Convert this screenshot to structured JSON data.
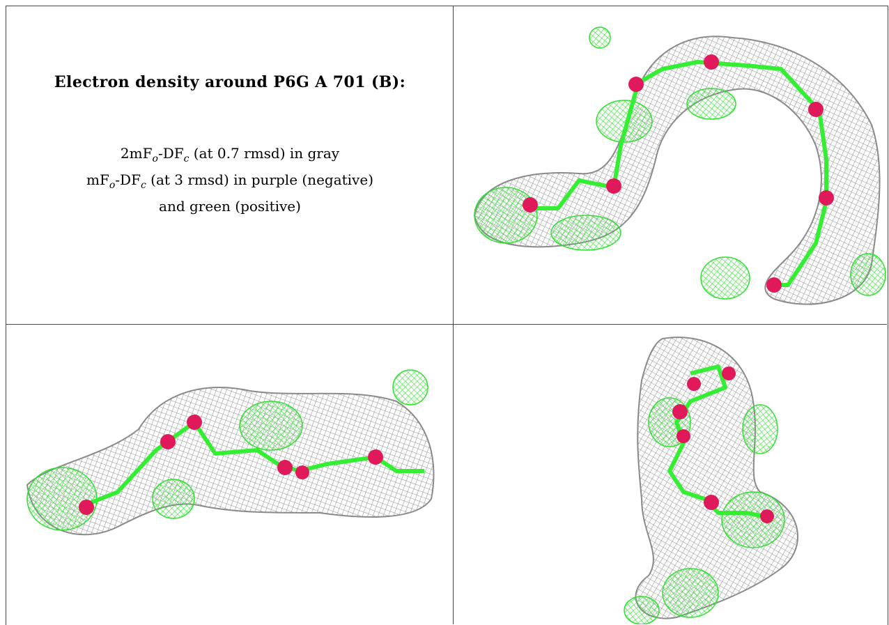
{
  "caption": {
    "title": "Electron density around P6G A 701 (B):",
    "line1": {
      "a": "2mF",
      "sub_o": "o",
      "b": "-DF",
      "sub_c": "c",
      "rest": " (at 0.7 rmsd) in gray"
    },
    "line2": {
      "a": "mF",
      "sub_o": "o",
      "b": "-DF",
      "sub_c": "c",
      "rest": " (at 3 rmsd) in purple (negative)"
    },
    "line3": "and green (positive)"
  },
  "colors": {
    "mesh_gray": "#9a9a9a",
    "mesh_green": "#3ee83e",
    "atom_red": "#e0195a",
    "bond_green": "#33ee33"
  }
}
